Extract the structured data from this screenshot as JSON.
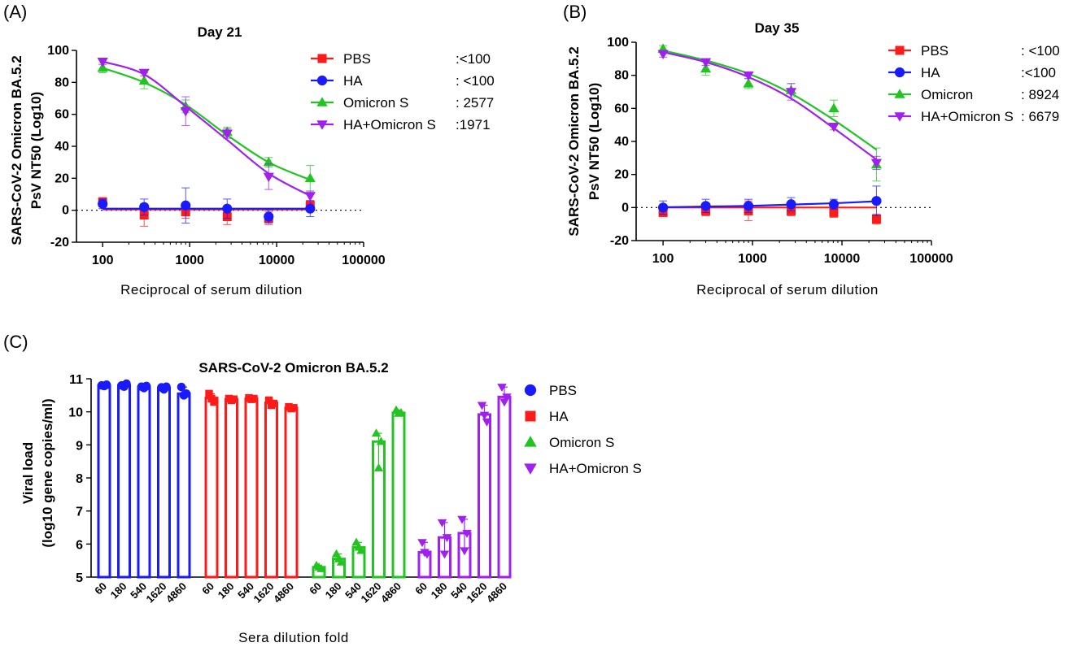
{
  "panels": {
    "a": "(A)",
    "b": "(B)",
    "c": "(C)"
  },
  "chart_data": [
    {
      "id": "A",
      "type": "line",
      "title": "Day 21",
      "xlabel": "Reciprocal of serum dilution",
      "ylabel_line1": "SARS-CoV-2 Omicron BA.5.2",
      "ylabel_line2": "PsV NT50 (Log10)",
      "x_scale": "log",
      "xlim": [
        50,
        100000
      ],
      "ylim": [
        -20,
        100
      ],
      "x_ticks": [
        100,
        1000,
        10000,
        100000
      ],
      "x_tick_labels": [
        "100",
        "1000",
        "10000",
        "100000"
      ],
      "y_ticks": [
        -20,
        0,
        20,
        40,
        60,
        80,
        100
      ],
      "y_tick_labels": [
        "-20",
        "0",
        "20",
        "40",
        "60",
        "80",
        "100"
      ],
      "x": [
        100,
        300,
        900,
        2700,
        8100,
        24300
      ],
      "legend_position": "top-right",
      "series": [
        {
          "name": "PBS",
          "value_label": ":<100",
          "color": "#ff1a1a",
          "marker": "square",
          "values": [
            5,
            -3,
            -1,
            -4,
            -5,
            3
          ],
          "errors": [
            3,
            7,
            4,
            5,
            4,
            3
          ],
          "fit": [
            0.5,
            0.5,
            0.5,
            0.5,
            0.5,
            0.5
          ]
        },
        {
          "name": "HA",
          "value_label": ": <100",
          "color": "#1a1aff",
          "marker": "circle",
          "values": [
            4,
            2,
            3,
            1,
            -4,
            1
          ],
          "errors": [
            3,
            5,
            11,
            6,
            4,
            5
          ],
          "fit": [
            1,
            1,
            1,
            1,
            1,
            1
          ]
        },
        {
          "name": "Omicron S",
          "value_label": ": 2577",
          "color": "#22c422",
          "marker": "triangle",
          "values": [
            89,
            81,
            65,
            49,
            30,
            20
          ],
          "errors": [
            3,
            5,
            4,
            3,
            3,
            8
          ],
          "fit": [
            89,
            80,
            66,
            47,
            30,
            19
          ]
        },
        {
          "name": "HA+Omicron S",
          "value_label": ":1971",
          "color": "#a020f0",
          "marker": "triangle-down",
          "values": [
            93,
            86,
            62,
            48,
            21,
            9
          ],
          "errors": [
            2,
            2,
            9,
            3,
            8,
            3
          ],
          "fit": [
            93,
            85,
            65,
            44,
            23,
            9
          ]
        }
      ]
    },
    {
      "id": "B",
      "type": "line",
      "title": "Day 35",
      "xlabel": "Reciprocal of serum dilution",
      "ylabel_line1": "SARS-CoV-2  Omicron BA.5.2",
      "ylabel_line2": "PsV NT50 (Log10)",
      "x_scale": "log",
      "xlim": [
        50,
        100000
      ],
      "ylim": [
        -20,
        100
      ],
      "x_ticks": [
        100,
        1000,
        10000,
        100000
      ],
      "x_tick_labels": [
        "100",
        "1000",
        "10000",
        "100000"
      ],
      "y_ticks": [
        -20,
        0,
        20,
        40,
        60,
        80,
        100
      ],
      "y_tick_labels": [
        "-20",
        "0",
        "20",
        "40",
        "60",
        "80",
        "100"
      ],
      "x": [
        100,
        300,
        900,
        2700,
        8100,
        24300
      ],
      "legend_position": "top-right",
      "series": [
        {
          "name": "PBS",
          "value_label": ": <100",
          "color": "#ff1a1a",
          "marker": "square",
          "values": [
            -3,
            -2,
            -2,
            -2,
            -3,
            -7
          ],
          "errors": [
            2,
            3,
            6,
            3,
            3,
            3
          ],
          "fit": [
            0,
            0,
            0,
            0,
            0,
            0
          ]
        },
        {
          "name": "HA",
          "value_label": ":<100",
          "color": "#1a1aff",
          "marker": "circle",
          "values": [
            0,
            1,
            1,
            2,
            2,
            4
          ],
          "errors": [
            4,
            4,
            4,
            4,
            3,
            9
          ],
          "fit": [
            0.2,
            0.6,
            1,
            1.8,
            2.6,
            3.8
          ]
        },
        {
          "name": "Omicron",
          "value_label": ": 8924",
          "color": "#22c422",
          "marker": "triangle",
          "values": [
            96,
            84,
            75,
            71,
            60,
            26
          ],
          "errors": [
            2,
            4,
            3,
            4,
            5,
            10
          ],
          "fit": [
            95,
            89,
            81,
            69,
            53,
            35
          ]
        },
        {
          "name": "HA+Omicron S",
          "value_label": ": 6679",
          "color": "#a020f0",
          "marker": "triangle-down",
          "values": [
            93,
            88,
            80,
            70,
            49,
            27
          ],
          "errors": [
            2,
            2,
            2,
            5,
            2,
            4
          ],
          "fit": [
            94,
            88,
            79,
            66,
            48,
            29
          ]
        }
      ]
    },
    {
      "id": "C",
      "type": "bar",
      "title": "SARS-CoV-2 Omicron BA.5.2",
      "xlabel": "Sera dilution fold",
      "ylabel_line1": "Viral load",
      "ylabel_line2": "(log10 gene copies/ml)",
      "ylim": [
        5,
        11
      ],
      "y_ticks": [
        5,
        6,
        7,
        8,
        9,
        10,
        11
      ],
      "y_tick_labels": [
        "5",
        "6",
        "7",
        "8",
        "9",
        "10",
        "11"
      ],
      "categories": [
        "60",
        "180",
        "540",
        "1620",
        "4860"
      ],
      "legend_position": "right",
      "series": [
        {
          "name": "PBS",
          "color": "#1a1aff",
          "marker": "circle",
          "values": [
            10.8,
            10.8,
            10.75,
            10.72,
            10.55
          ],
          "points": [
            [
              10.8,
              10.78,
              10.82
            ],
            [
              10.8,
              10.76,
              10.85
            ],
            [
              10.76,
              10.72,
              10.78
            ],
            [
              10.74,
              10.68,
              10.76
            ],
            [
              10.75,
              10.5,
              10.55
            ]
          ]
        },
        {
          "name": "HA",
          "color": "#ff1a1a",
          "marker": "square",
          "values": [
            10.42,
            10.38,
            10.4,
            10.27,
            10.12
          ],
          "points": [
            [
              10.55,
              10.4,
              10.3
            ],
            [
              10.4,
              10.35,
              10.38
            ],
            [
              10.42,
              10.38,
              10.4
            ],
            [
              10.35,
              10.2,
              10.25
            ],
            [
              10.15,
              10.1,
              10.12
            ]
          ]
        },
        {
          "name": "Omicron S",
          "color": "#22c422",
          "marker": "triangle",
          "values": [
            5.3,
            5.55,
            5.9,
            9.1,
            9.97
          ],
          "points": [
            [
              5.35,
              5.3,
              5.25
            ],
            [
              5.7,
              5.55,
              5.45
            ],
            [
              6.05,
              5.9,
              5.8
            ],
            [
              9.35,
              8.3,
              9.1
            ],
            [
              10.05,
              9.95,
              9.97
            ]
          ]
        },
        {
          "name": "HA+Omicron S",
          "color": "#a020f0",
          "marker": "triangle-down",
          "values": [
            5.75,
            6.2,
            6.33,
            9.92,
            10.45
          ],
          "points": [
            [
              6.05,
              5.75,
              5.7
            ],
            [
              6.65,
              5.7,
              6.2
            ],
            [
              6.75,
              5.8,
              6.33
            ],
            [
              10.2,
              9.9,
              9.7
            ],
            [
              10.75,
              10.3,
              10.45
            ]
          ]
        }
      ]
    }
  ]
}
